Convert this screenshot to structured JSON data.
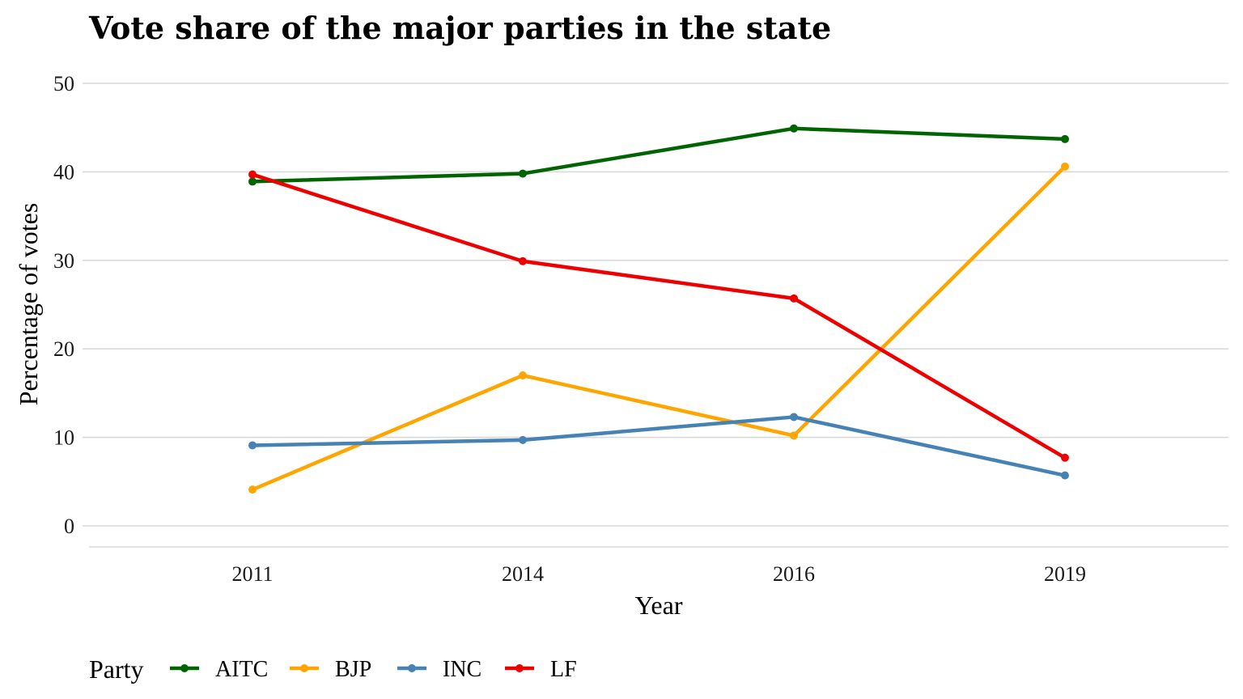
{
  "chart_data": {
    "type": "line",
    "title": "Vote share of the major parties in the state",
    "xlabel": "Year",
    "ylabel": "Percentage of votes",
    "x": [
      "2011",
      "2014",
      "2016",
      "2019"
    ],
    "ylim": [
      0,
      50
    ],
    "y_ticks": [
      "0",
      "10",
      "20",
      "30",
      "40",
      "50"
    ],
    "grid": true,
    "legend_title": "Party",
    "legend_position": "bottom-left",
    "series": [
      {
        "name": "AITC",
        "color": "#006400",
        "values": [
          38.9,
          39.8,
          44.9,
          43.7
        ]
      },
      {
        "name": "BJP",
        "color": "#FFA500",
        "values": [
          4.1,
          17.0,
          10.2,
          40.6
        ]
      },
      {
        "name": "INC",
        "color": "#4682B4",
        "values": [
          9.1,
          9.7,
          12.3,
          5.7
        ]
      },
      {
        "name": "LF",
        "color": "#EE0000",
        "values": [
          39.7,
          29.9,
          25.7,
          7.7
        ]
      }
    ]
  }
}
